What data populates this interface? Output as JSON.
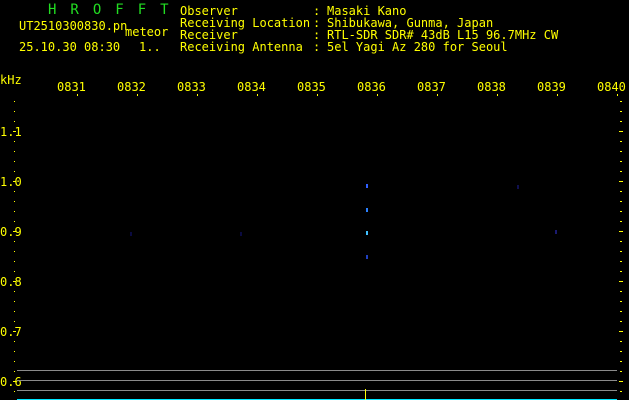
{
  "header": {
    "app_title": "HROFFT",
    "filename": "UT2510300830.pn",
    "mode": "meteor",
    "datetime": "25.10.30 08:30",
    "counter": "1..",
    "fields": [
      {
        "label": "Observer",
        "value": "Masaki Kano"
      },
      {
        "label": "Receiving Location",
        "value": "Shibukawa, Gunma, Japan"
      },
      {
        "label": "Receiver",
        "value": "RTL-SDR SDR# 43dB L15 96.7MHz CW"
      },
      {
        "label": "Receiving Antenna",
        "value": "5el Yagi Az 280 for Seoul"
      }
    ],
    "separator": ":"
  },
  "spectrogram": {
    "y_unit": "kHz",
    "y_ticks": [
      "1.1",
      "1.0",
      "0.9",
      "0.8",
      "0.7",
      "0.6"
    ],
    "time_labels": [
      "0831",
      "0832",
      "0833",
      "0834",
      "0835",
      "0836",
      "0837",
      "0838",
      "0839",
      "0840"
    ],
    "colors": {
      "background": "#000000",
      "text": "#ffff00",
      "signal": "#1e90ff",
      "baseline": "#00e5ff",
      "gridline": "#8a8a8a"
    }
  }
}
